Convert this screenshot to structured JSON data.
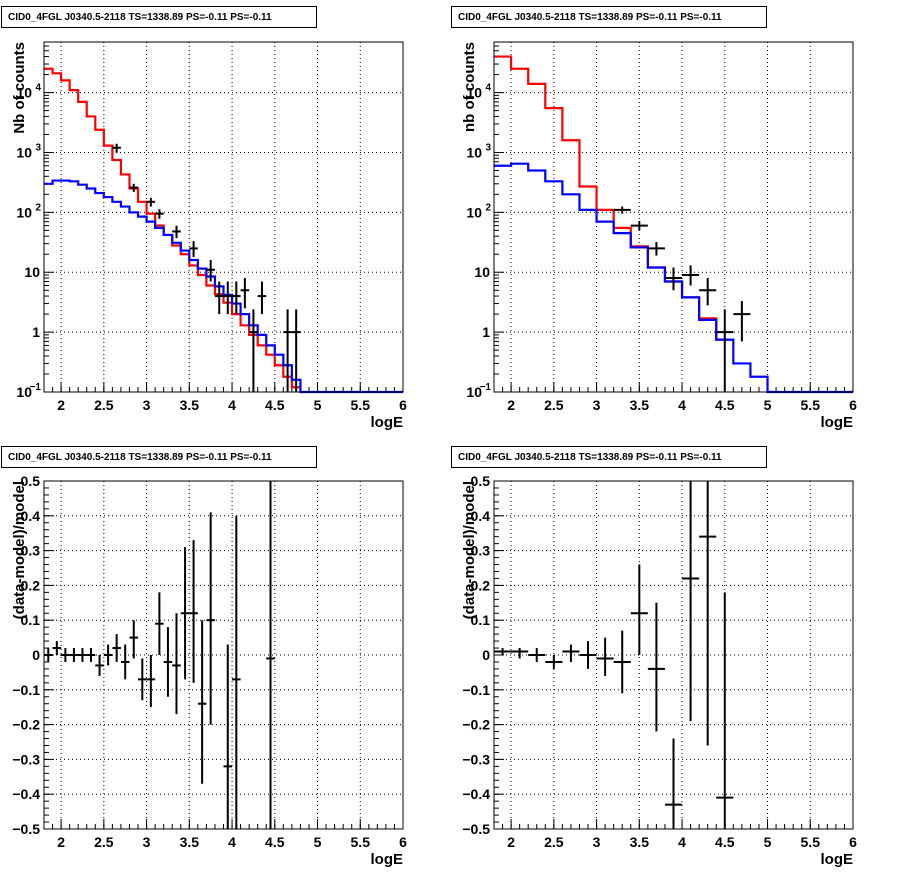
{
  "panels": [
    {
      "title": "CID0_4FGL J0340.5-2118 TS=1338.89 PS=-0.11 PS=-0.11"
    },
    {
      "title": "CID0_4FGL J0340.5-2118 TS=1338.89 PS=-0.11 PS=-0.11"
    },
    {
      "title": "CID0_4FGL J0340.5-2118 TS=1338.89 PS=-0.11 PS=-0.11"
    },
    {
      "title": "CID0_4FGL J0340.5-2118 TS=1338.89 PS=-0.11 PS=-0.11"
    }
  ],
  "colors": {
    "total_model": "#ff0000",
    "component_model": "#0000ff",
    "data": "#000000"
  },
  "chart_data": [
    {
      "type": "line",
      "title": "CID0_4FGL J0340.5-2118 TS=1338.89 PS=-0.11 PS=-0.11",
      "xlabel": "logE",
      "ylabel": "Nb of counts",
      "xlim": [
        1.8,
        6
      ],
      "ylim": [
        0.1,
        70000
      ],
      "ylog": true,
      "grid": true,
      "x_ticks": [
        "2",
        "2.5",
        "3",
        "3.5",
        "4",
        "4.5",
        "5",
        "5.5",
        "6"
      ],
      "y_ticks": [
        "10^-1",
        "1",
        "10",
        "10^2",
        "10^3",
        "10^4"
      ],
      "bin_edges": [
        1.8,
        1.9,
        2.0,
        2.1,
        2.2,
        2.3,
        2.4,
        2.5,
        2.6,
        2.7,
        2.8,
        2.9,
        3.0,
        3.1,
        3.2,
        3.3,
        3.4,
        3.5,
        3.6,
        3.7,
        3.8,
        3.9,
        4.0,
        4.1,
        4.2,
        4.3,
        4.4,
        4.5,
        4.6,
        4.7,
        4.8,
        4.9,
        5.0,
        5.1,
        5.2,
        5.3,
        5.4,
        5.5,
        5.6,
        5.7,
        5.8,
        5.9,
        6.0
      ],
      "series": [
        {
          "name": "total model",
          "style": "step",
          "color": "#ff0000",
          "values": [
            25000,
            21000,
            16000,
            11000,
            7000,
            4000,
            2400,
            1300,
            750,
            430,
            250,
            150,
            95,
            60,
            42,
            28,
            20,
            13,
            9,
            6,
            4.3,
            3.1,
            2.0,
            1.3,
            0.9,
            0.6,
            0.42,
            0.28,
            0.18,
            0.12
          ]
        },
        {
          "name": "component model",
          "style": "step",
          "color": "#0000ff",
          "values": [
            300,
            340,
            340,
            330,
            290,
            250,
            210,
            180,
            150,
            125,
            100,
            85,
            70,
            55,
            42,
            31,
            23,
            16,
            11.5,
            8.5,
            5.8,
            4.2,
            3.0,
            2.0,
            1.3,
            0.9,
            0.6,
            0.42,
            0.28,
            0.16,
            0.1,
            0.1,
            0.1,
            0.1,
            0.1,
            0.1,
            0.1,
            0.1,
            0.1,
            0.1,
            0.1,
            0.1
          ]
        },
        {
          "name": "data",
          "style": "points",
          "points": [
            {
              "x": 2.65,
              "y": 1200,
              "ylo": 1000,
              "yhi": 1400,
              "xerr": 0.05
            },
            {
              "x": 2.85,
              "y": 260,
              "ylo": 220,
              "yhi": 300,
              "xerr": 0.05
            },
            {
              "x": 3.05,
              "y": 150,
              "ylo": 125,
              "yhi": 175,
              "xerr": 0.05
            },
            {
              "x": 3.15,
              "y": 95,
              "ylo": 78,
              "yhi": 113,
              "xerr": 0.05
            },
            {
              "x": 3.35,
              "y": 48,
              "ylo": 37,
              "yhi": 60,
              "xerr": 0.05
            },
            {
              "x": 3.55,
              "y": 25,
              "ylo": 18,
              "yhi": 33,
              "xerr": 0.05
            },
            {
              "x": 3.75,
              "y": 11,
              "ylo": 7,
              "yhi": 16,
              "xerr": 0.05
            },
            {
              "x": 3.85,
              "y": 4,
              "ylo": 2,
              "yhi": 7,
              "xerr": 0.05
            },
            {
              "x": 3.95,
              "y": 4,
              "ylo": 2,
              "yhi": 7,
              "xerr": 0.05
            },
            {
              "x": 4.05,
              "y": 4,
              "ylo": 2,
              "yhi": 7,
              "xerr": 0.05
            },
            {
              "x": 4.15,
              "y": 5,
              "ylo": 2.5,
              "yhi": 8,
              "xerr": 0.05
            },
            {
              "x": 4.25,
              "y": 1,
              "ylo": 0.1,
              "yhi": 2.4,
              "xerr": 0.05
            },
            {
              "x": 4.35,
              "y": 4,
              "ylo": 2,
              "yhi": 7,
              "xerr": 0.05
            },
            {
              "x": 4.65,
              "y": 1,
              "ylo": 0.1,
              "yhi": 2.4,
              "xerr": 0.05
            },
            {
              "x": 4.75,
              "y": 1,
              "ylo": 0.1,
              "yhi": 2.4,
              "xerr": 0.05
            }
          ]
        }
      ]
    },
    {
      "type": "line",
      "title": "CID0_4FGL J0340.5-2118 TS=1338.89 PS=-0.11 PS=-0.11",
      "xlabel": "logE",
      "ylabel": "nb of counts",
      "xlim": [
        1.8,
        6
      ],
      "ylim": [
        0.1,
        70000
      ],
      "ylog": true,
      "grid": true,
      "x_ticks": [
        "2",
        "2.5",
        "3",
        "3.5",
        "4",
        "4.5",
        "5",
        "5.5",
        "6"
      ],
      "y_ticks": [
        "10^-1",
        "1",
        "10",
        "10^2",
        "10^3",
        "10^4"
      ],
      "bin_edges": [
        1.8,
        2.0,
        2.2,
        2.4,
        2.6,
        2.8,
        3.0,
        3.2,
        3.4,
        3.6,
        3.8,
        4.0,
        4.2,
        4.4,
        4.6,
        4.8,
        5.0,
        5.2,
        5.4,
        5.6,
        5.8,
        6.0
      ],
      "series": [
        {
          "name": "total model",
          "style": "step",
          "color": "#ff0000",
          "values": [
            40000,
            25000,
            14000,
            5500,
            1600,
            270,
            110,
            55,
            27,
            12,
            7,
            3.8,
            1.7,
            0.75
          ]
        },
        {
          "name": "component model",
          "style": "step",
          "color": "#0000ff",
          "values": [
            600,
            650,
            500,
            330,
            200,
            110,
            70,
            45,
            26,
            12,
            7,
            3.8,
            1.6,
            0.75,
            0.3,
            0.18,
            0.1,
            0.1,
            0.1,
            0.1,
            0.1
          ]
        },
        {
          "name": "data",
          "style": "points",
          "points": [
            {
              "x": 3.3,
              "y": 110,
              "ylo": 95,
              "yhi": 125,
              "xerr": 0.1
            },
            {
              "x": 3.5,
              "y": 60,
              "ylo": 50,
              "yhi": 72,
              "xerr": 0.1
            },
            {
              "x": 3.7,
              "y": 25,
              "ylo": 19,
              "yhi": 32,
              "xerr": 0.1
            },
            {
              "x": 3.9,
              "y": 8,
              "ylo": 5,
              "yhi": 12,
              "xerr": 0.1
            },
            {
              "x": 4.1,
              "y": 9,
              "ylo": 6,
              "yhi": 13,
              "xerr": 0.1
            },
            {
              "x": 4.3,
              "y": 5,
              "ylo": 2.8,
              "yhi": 8,
              "xerr": 0.1
            },
            {
              "x": 4.5,
              "y": 1,
              "ylo": 0.1,
              "yhi": 2.4,
              "xerr": 0.1
            },
            {
              "x": 4.7,
              "y": 2,
              "ylo": 0.7,
              "yhi": 3.3,
              "xerr": 0.1
            }
          ]
        }
      ]
    },
    {
      "type": "scatter",
      "title": "CID0_4FGL J0340.5-2118 TS=1338.89 PS=-0.11 PS=-0.11",
      "xlabel": "logE",
      "ylabel": "(data-model)/model",
      "xlim": [
        1.8,
        6
      ],
      "ylim": [
        -0.5,
        0.5
      ],
      "grid": true,
      "x_ticks": [
        "2",
        "2.5",
        "3",
        "3.5",
        "4",
        "4.5",
        "5",
        "5.5",
        "6"
      ],
      "y_ticks": [
        "-0.5",
        "-0.4",
        "-0.3",
        "-0.2",
        "-0.1",
        "0",
        "0.1",
        "0.2",
        "0.3",
        "0.4",
        "0.5"
      ],
      "series": [
        {
          "name": "residuals",
          "points": [
            {
              "x": 1.85,
              "y": 0.0,
              "ylo": -0.02,
              "yhi": 0.02,
              "xerr": 0.05
            },
            {
              "x": 1.95,
              "y": 0.02,
              "ylo": 0.0,
              "yhi": 0.04,
              "xerr": 0.05
            },
            {
              "x": 2.05,
              "y": 0.0,
              "ylo": -0.02,
              "yhi": 0.02,
              "xerr": 0.05
            },
            {
              "x": 2.15,
              "y": 0.0,
              "ylo": -0.02,
              "yhi": 0.02,
              "xerr": 0.05
            },
            {
              "x": 2.25,
              "y": 0.0,
              "ylo": -0.02,
              "yhi": 0.02,
              "xerr": 0.05
            },
            {
              "x": 2.35,
              "y": 0.0,
              "ylo": -0.02,
              "yhi": 0.02,
              "xerr": 0.05
            },
            {
              "x": 2.45,
              "y": -0.03,
              "ylo": -0.06,
              "yhi": 0.0,
              "xerr": 0.05
            },
            {
              "x": 2.55,
              "y": 0.0,
              "ylo": -0.03,
              "yhi": 0.03,
              "xerr": 0.05
            },
            {
              "x": 2.65,
              "y": 0.02,
              "ylo": -0.02,
              "yhi": 0.06,
              "xerr": 0.05
            },
            {
              "x": 2.75,
              "y": -0.02,
              "ylo": -0.07,
              "yhi": 0.03,
              "xerr": 0.05
            },
            {
              "x": 2.85,
              "y": 0.05,
              "ylo": -0.01,
              "yhi": 0.1,
              "xerr": 0.05
            },
            {
              "x": 2.95,
              "y": -0.07,
              "ylo": -0.13,
              "yhi": -0.01,
              "xerr": 0.05
            },
            {
              "x": 3.05,
              "y": -0.07,
              "ylo": -0.15,
              "yhi": 0.0,
              "xerr": 0.05
            },
            {
              "x": 3.15,
              "y": 0.09,
              "ylo": 0.0,
              "yhi": 0.18,
              "xerr": 0.05
            },
            {
              "x": 3.25,
              "y": -0.02,
              "ylo": -0.12,
              "yhi": 0.08,
              "xerr": 0.05
            },
            {
              "x": 3.35,
              "y": -0.03,
              "ylo": -0.17,
              "yhi": 0.12,
              "xerr": 0.05
            },
            {
              "x": 3.45,
              "y": 0.12,
              "ylo": -0.07,
              "yhi": 0.31,
              "xerr": 0.05
            },
            {
              "x": 3.55,
              "y": 0.12,
              "ylo": -0.08,
              "yhi": 0.33,
              "xerr": 0.05
            },
            {
              "x": 3.65,
              "y": -0.14,
              "ylo": -0.37,
              "yhi": 0.1,
              "xerr": 0.05
            },
            {
              "x": 3.75,
              "y": 0.1,
              "ylo": -0.2,
              "yhi": 0.41,
              "xerr": 0.05
            },
            {
              "x": 3.95,
              "y": -0.32,
              "ylo": -0.5,
              "yhi": 0.03,
              "xerr": 0.05
            },
            {
              "x": 4.05,
              "y": -0.07,
              "ylo": -0.5,
              "yhi": 0.4,
              "xerr": 0.05
            },
            {
              "x": 4.45,
              "y": -0.01,
              "ylo": -0.5,
              "yhi": 0.5,
              "xerr": 0.05
            }
          ]
        }
      ]
    },
    {
      "type": "scatter",
      "title": "CID0_4FGL J0340.5-2118 TS=1338.89 PS=-0.11 PS=-0.11",
      "xlabel": "logE",
      "ylabel": "(data-model)/model",
      "xlim": [
        1.8,
        6
      ],
      "ylim": [
        -0.5,
        0.5
      ],
      "grid": true,
      "x_ticks": [
        "2",
        "2.5",
        "3",
        "3.5",
        "4",
        "4.5",
        "5",
        "5.5",
        "6"
      ],
      "y_ticks": [
        "-0.5",
        "-0.4",
        "-0.3",
        "-0.2",
        "-0.1",
        "0",
        "0.1",
        "0.2",
        "0.3",
        "0.4",
        "0.5"
      ],
      "series": [
        {
          "name": "residuals",
          "points": [
            {
              "x": 1.9,
              "y": 0.01,
              "ylo": 0.0,
              "yhi": 0.02,
              "xerr": 0.1
            },
            {
              "x": 2.1,
              "y": 0.01,
              "ylo": -0.01,
              "yhi": 0.02,
              "xerr": 0.1
            },
            {
              "x": 2.3,
              "y": 0.0,
              "ylo": -0.02,
              "yhi": 0.02,
              "xerr": 0.1
            },
            {
              "x": 2.5,
              "y": -0.02,
              "ylo": -0.04,
              "yhi": 0.0,
              "xerr": 0.1
            },
            {
              "x": 2.7,
              "y": 0.01,
              "ylo": -0.02,
              "yhi": 0.03,
              "xerr": 0.1
            },
            {
              "x": 2.9,
              "y": 0.0,
              "ylo": -0.04,
              "yhi": 0.04,
              "xerr": 0.1
            },
            {
              "x": 3.1,
              "y": -0.01,
              "ylo": -0.06,
              "yhi": 0.05,
              "xerr": 0.1
            },
            {
              "x": 3.3,
              "y": -0.02,
              "ylo": -0.11,
              "yhi": 0.07,
              "xerr": 0.1
            },
            {
              "x": 3.5,
              "y": 0.12,
              "ylo": 0.0,
              "yhi": 0.26,
              "xerr": 0.1
            },
            {
              "x": 3.7,
              "y": -0.04,
              "ylo": -0.22,
              "yhi": 0.15,
              "xerr": 0.1
            },
            {
              "x": 3.9,
              "y": -0.43,
              "ylo": -0.5,
              "yhi": -0.24,
              "xerr": 0.1
            },
            {
              "x": 4.1,
              "y": 0.22,
              "ylo": -0.19,
              "yhi": 0.5,
              "xerr": 0.1
            },
            {
              "x": 4.3,
              "y": 0.34,
              "ylo": -0.26,
              "yhi": 0.5,
              "xerr": 0.1
            },
            {
              "x": 4.5,
              "y": -0.41,
              "ylo": -0.5,
              "yhi": 0.18,
              "xerr": 0.1
            }
          ]
        }
      ]
    }
  ]
}
